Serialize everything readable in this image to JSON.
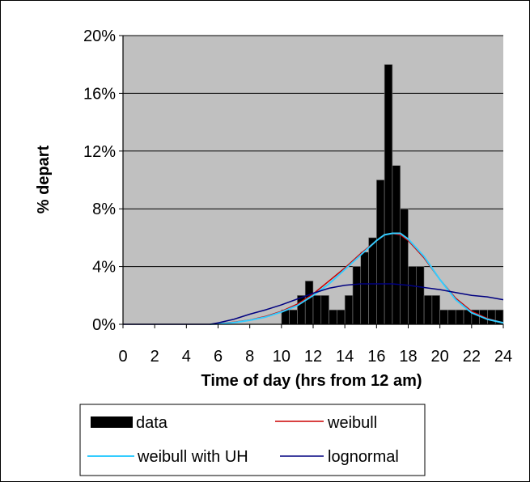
{
  "chart_data": {
    "type": "bar",
    "xlabel": "Time of day (hrs from 12 am)",
    "ylabel": "% depart",
    "xlim": [
      0,
      24
    ],
    "ylim": [
      0,
      20
    ],
    "x_ticks": [
      0,
      2,
      4,
      6,
      8,
      10,
      12,
      14,
      16,
      18,
      20,
      22,
      24
    ],
    "x_tick_labels": [
      "0",
      "2",
      "4",
      "6",
      "8",
      "10",
      "12",
      "14",
      "16",
      "18",
      "20",
      "22",
      "24"
    ],
    "y_ticks": [
      0,
      4,
      8,
      12,
      16,
      20
    ],
    "y_tick_labels": [
      "0%",
      "4%",
      "8%",
      "12%",
      "16%",
      "20%"
    ],
    "grid": "horizontal",
    "plot_background": "#c0c0c0",
    "legend": {
      "position": "bottom",
      "entries": [
        {
          "label": "data",
          "marker": "bar"
        },
        {
          "label": "weibull",
          "marker": "line"
        },
        {
          "label": "weibull with UH",
          "marker": "line"
        },
        {
          "label": "lognormal",
          "marker": "line"
        }
      ]
    },
    "bars": {
      "name": "data",
      "color": "#000000",
      "bin_width": 0.5,
      "x": [
        10.25,
        10.75,
        11.25,
        11.75,
        12.25,
        12.75,
        13.25,
        13.75,
        14.25,
        14.75,
        15.25,
        15.75,
        16.25,
        16.75,
        17.25,
        17.75,
        18.25,
        18.75,
        19.25,
        19.75,
        20.25,
        20.75,
        21.25,
        21.75,
        22.25,
        22.75,
        23.25,
        23.75
      ],
      "values": [
        1,
        1,
        2,
        3,
        2,
        2,
        1,
        1,
        2,
        4,
        5,
        6,
        10,
        18,
        11,
        8,
        4,
        4,
        2,
        2,
        1,
        1,
        1,
        1,
        1,
        1,
        1,
        1
      ]
    },
    "series": [
      {
        "name": "weibull",
        "color": "#cc0000",
        "x": [
          5.5,
          6,
          7,
          8,
          9,
          10,
          11,
          12,
          13,
          14,
          15,
          16,
          16.5,
          17,
          17.5,
          18,
          19,
          20,
          21,
          22,
          23,
          24
        ],
        "y": [
          0,
          0.05,
          0.15,
          0.3,
          0.55,
          0.9,
          1.4,
          2.1,
          3.0,
          3.9,
          4.9,
          5.8,
          6.2,
          6.3,
          6.2,
          5.8,
          4.6,
          3.1,
          1.8,
          0.9,
          0.4,
          0.1
        ]
      },
      {
        "name": "weibull with UH",
        "color": "#33ccff",
        "x": [
          5.5,
          6,
          7,
          8,
          9,
          10,
          11,
          12,
          13,
          14,
          15,
          16,
          16.5,
          17,
          17.5,
          18,
          19,
          20,
          21,
          22,
          23,
          24
        ],
        "y": [
          0,
          0.03,
          0.12,
          0.28,
          0.5,
          0.85,
          1.3,
          2.0,
          2.8,
          3.8,
          4.8,
          5.8,
          6.2,
          6.3,
          6.3,
          5.9,
          4.7,
          3.1,
          1.7,
          0.8,
          0.35,
          0.1
        ]
      },
      {
        "name": "lognormal",
        "color": "#000080",
        "x": [
          0,
          5.5,
          6,
          7,
          8,
          9,
          10,
          11,
          12,
          13,
          14,
          15,
          16,
          17,
          18,
          19,
          20,
          21,
          22,
          23,
          24
        ],
        "y": [
          0,
          0,
          0.1,
          0.35,
          0.7,
          1.0,
          1.35,
          1.75,
          2.15,
          2.5,
          2.7,
          2.8,
          2.8,
          2.8,
          2.7,
          2.55,
          2.4,
          2.2,
          2.0,
          1.9,
          1.7
        ]
      }
    ]
  }
}
